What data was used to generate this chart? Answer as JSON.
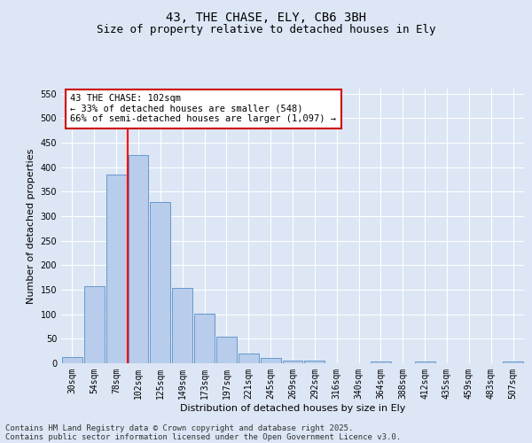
{
  "title": "43, THE CHASE, ELY, CB6 3BH",
  "subtitle": "Size of property relative to detached houses in Ely",
  "xlabel": "Distribution of detached houses by size in Ely",
  "ylabel": "Number of detached properties",
  "categories": [
    "30sqm",
    "54sqm",
    "78sqm",
    "102sqm",
    "125sqm",
    "149sqm",
    "173sqm",
    "197sqm",
    "221sqm",
    "245sqm",
    "269sqm",
    "292sqm",
    "316sqm",
    "340sqm",
    "364sqm",
    "388sqm",
    "412sqm",
    "435sqm",
    "459sqm",
    "483sqm",
    "507sqm"
  ],
  "values": [
    13,
    157,
    385,
    425,
    328,
    153,
    102,
    55,
    19,
    10,
    5,
    5,
    0,
    0,
    3,
    0,
    3,
    0,
    0,
    0,
    3
  ],
  "bar_color": "#b8cceb",
  "bar_edge_color": "#6699cc",
  "bg_color": "#dce6f5",
  "red_line_index": 3,
  "annotation_line1": "43 THE CHASE: 102sqm",
  "annotation_line2": "← 33% of detached houses are smaller (548)",
  "annotation_line3": "66% of semi-detached houses are larger (1,097) →",
  "annotation_box_color": "#ffffff",
  "annotation_box_edge": "#cc0000",
  "ylim": [
    0,
    560
  ],
  "yticks": [
    0,
    50,
    100,
    150,
    200,
    250,
    300,
    350,
    400,
    450,
    500,
    550
  ],
  "footer1": "Contains HM Land Registry data © Crown copyright and database right 2025.",
  "footer2": "Contains public sector information licensed under the Open Government Licence v3.0.",
  "title_fontsize": 10,
  "subtitle_fontsize": 9,
  "axis_label_fontsize": 8,
  "tick_fontsize": 7,
  "annotation_fontsize": 7.5,
  "footer_fontsize": 6.5
}
